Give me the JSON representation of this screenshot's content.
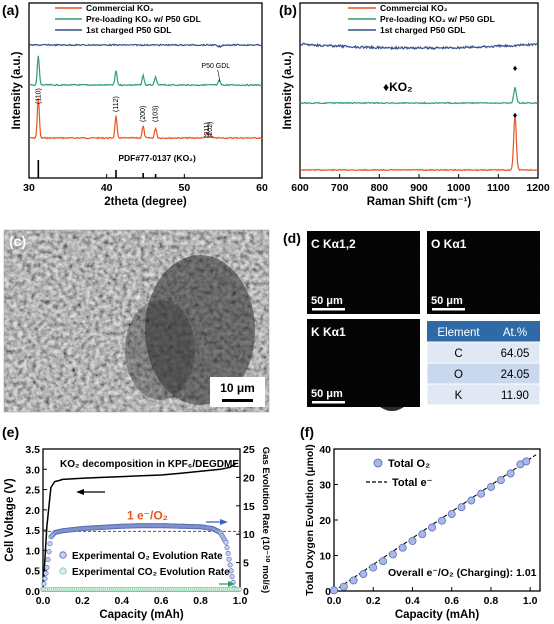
{
  "panels": {
    "a": {
      "label": "(a)",
      "chart_data": {
        "type": "line",
        "xlabel": "2theta (degree)",
        "ylabel": "Intensity (a.u.)",
        "xlim": [
          30,
          60
        ],
        "xticks": [
          "30",
          "40",
          "50",
          "60"
        ],
        "legend_position": "top",
        "series": [
          {
            "name": "Commercial KO₂",
            "color": "#e8541e",
            "peaks": [
              [
                31.2,
                1.0
              ],
              [
                41.2,
                0.55
              ],
              [
                44.7,
                0.3
              ],
              [
                46.3,
                0.25
              ],
              [
                52.9,
                0.12
              ],
              [
                53.3,
                0.1
              ]
            ]
          },
          {
            "name": "Pre-loading KO₂ w/ P50 GDL",
            "color": "#2e9e6b",
            "peaks": [
              [
                31.2,
                0.9
              ],
              [
                41.2,
                0.45
              ],
              [
                44.7,
                0.3
              ],
              [
                46.3,
                0.25
              ],
              [
                54.5,
                0.15
              ]
            ]
          },
          {
            "name": "1st charged P50 GDL",
            "color": "#3a4f8c",
            "peaks": [
              [
                54.5,
                0.3
              ]
            ]
          }
        ],
        "peak_labels": [
          "(110)",
          "(112)",
          "(200)",
          "(103)",
          "(211)",
          "(202)"
        ],
        "annotations": {
          "gdl": "P50 GDL",
          "pdf": "PDF#77-0137 (KO₂)"
        }
      }
    },
    "b": {
      "label": "(b)",
      "chart_data": {
        "type": "line",
        "xlabel": "Raman Shift (cm⁻¹)",
        "ylabel": "Intensity (a.u.)",
        "xlim": [
          600,
          1200
        ],
        "xticks": [
          "600",
          "700",
          "800",
          "900",
          "1000",
          "1100",
          "1200"
        ],
        "legend_position": "top",
        "series": [
          {
            "name": "Commercial KO₂",
            "color": "#e8541e",
            "peaks": [
              [
                1142,
                1.0
              ]
            ]
          },
          {
            "name": "Pre-loading KO₂ w/ P50 GDL",
            "color": "#2e9e6b",
            "peaks": [
              [
                1142,
                0.55
              ]
            ]
          },
          {
            "name": "1st charged P50 GDL",
            "color": "#3a4f8c",
            "peaks": []
          }
        ],
        "marker_label": "♦KO₂"
      }
    },
    "c": {
      "label": "(c)",
      "scale_bar": "10 μm"
    },
    "d": {
      "label": "(d)",
      "maps": [
        {
          "title": "C Kα1,2",
          "scale": "50 μm",
          "color": "#d01818"
        },
        {
          "title": "O Kα1",
          "scale": "50 μm",
          "color": "#1a9a1a"
        },
        {
          "title": "K Kα1",
          "scale": "50 μm",
          "color": "#d0c020"
        }
      ],
      "table": {
        "headers": [
          "Element",
          "At.%"
        ],
        "rows": [
          [
            "C",
            "64.05"
          ],
          [
            "O",
            "24.05"
          ],
          [
            "K",
            "11.90"
          ]
        ]
      }
    },
    "e": {
      "label": "(e)",
      "chart_data": {
        "type": "line",
        "title": "KO₂ decomposition in KPF₆/DEGDME",
        "xlabel": "Capacity (mAh)",
        "ylabel_left": "Cell Voltage (V)",
        "ylabel_right": "Gas Evolution Rate (10⁻¹⁰ mol/s)",
        "xlim": [
          0.0,
          1.0
        ],
        "ylim_left": [
          0.0,
          3.5
        ],
        "ylim_right": [
          0,
          25
        ],
        "xticks": [
          "0.0",
          "0.2",
          "0.4",
          "0.6",
          "0.8",
          "1.0"
        ],
        "yticks_left": [
          "0.0",
          "0.5",
          "1.0",
          "1.5",
          "2.0",
          "2.5",
          "3.0",
          "3.5"
        ],
        "yticks_right": [
          "0",
          "5",
          "10",
          "15",
          "20",
          "25"
        ],
        "reference_line": {
          "label": "1 e⁻/O₂",
          "value": 10.5
        },
        "series": [
          {
            "name": "Cell Voltage",
            "color": "#000000",
            "x": [
              0.0,
              0.02,
              0.04,
              0.06,
              0.08,
              0.1,
              0.2,
              0.3,
              0.4,
              0.5,
              0.6,
              0.7,
              0.8,
              0.9,
              0.95,
              0.98
            ],
            "y": [
              0.0,
              1.6,
              2.55,
              2.7,
              2.72,
              2.75,
              2.78,
              2.8,
              2.82,
              2.84,
              2.86,
              2.9,
              2.95,
              3.0,
              3.05,
              3.15
            ]
          },
          {
            "name": "Experimental O₂ Evolution Rate",
            "color": "#4a64b0",
            "x": [
              0.0,
              0.02,
              0.04,
              0.06,
              0.1,
              0.2,
              0.3,
              0.4,
              0.5,
              0.6,
              0.7,
              0.8,
              0.86,
              0.9,
              0.93,
              0.95,
              0.97
            ],
            "y": [
              0.3,
              4.0,
              9.5,
              10.3,
              10.6,
              11.0,
              11.2,
              11.4,
              11.5,
              11.5,
              11.4,
              11.3,
              11.0,
              10.3,
              8.5,
              4.5,
              0.5
            ]
          },
          {
            "name": "Experimental CO₂ Evolution Rate",
            "color": "#7dcaa0",
            "x": [
              0.0,
              0.2,
              0.4,
              0.6,
              0.8,
              1.0
            ],
            "y": [
              0.3,
              0.3,
              0.3,
              0.3,
              0.3,
              0.3
            ]
          }
        ]
      }
    },
    "f": {
      "label": "(f)",
      "chart_data": {
        "type": "scatter",
        "xlabel": "Capacity (mAh)",
        "ylabel": "Total Oxygen Evolution (μmol)",
        "xlim": [
          0.0,
          1.05
        ],
        "ylim": [
          0,
          40
        ],
        "xticks": [
          "0.0",
          "0.2",
          "0.4",
          "0.6",
          "0.8",
          "1.0"
        ],
        "yticks": [
          "0",
          "10",
          "20",
          "30",
          "40"
        ],
        "annotation": "Overall e⁻/O₂ (Charging): 1.01",
        "series": [
          {
            "name": "Total O₂",
            "color": "#a8b8e8",
            "x": [
              0.0,
              0.05,
              0.1,
              0.15,
              0.2,
              0.25,
              0.3,
              0.35,
              0.4,
              0.45,
              0.5,
              0.55,
              0.6,
              0.65,
              0.7,
              0.75,
              0.8,
              0.85,
              0.9,
              0.95,
              0.98
            ],
            "y": [
              0.2,
              1.2,
              3.0,
              4.8,
              6.6,
              8.4,
              10.3,
              12.2,
              14.1,
              16.0,
              17.9,
              19.8,
              21.7,
              23.6,
              25.5,
              27.4,
              29.3,
              31.2,
              33.1,
              35.7,
              36.5
            ]
          },
          {
            "name": "Total e⁻",
            "color": "#000000",
            "x": [
              0.0,
              1.03
            ],
            "y": [
              0.0,
              38.4
            ]
          }
        ]
      }
    }
  }
}
